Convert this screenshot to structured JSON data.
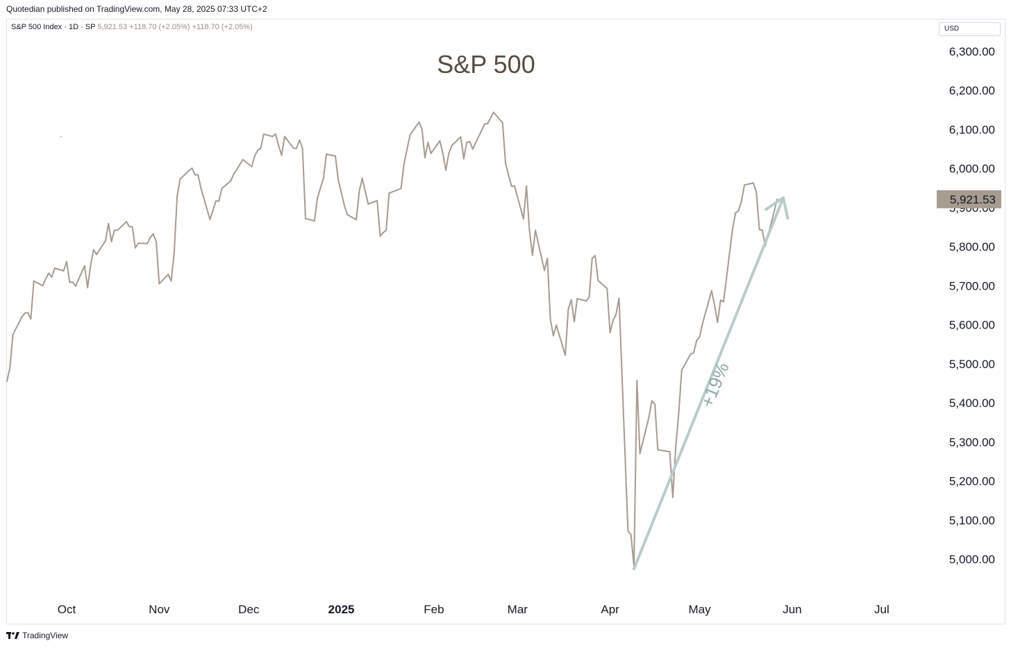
{
  "header": {
    "published": "Quotedian published on TradingView.com, May 28, 2025 07:33 UTC+2"
  },
  "legend": {
    "symbol": "S&P 500 Index · 1D · SP",
    "last": "5,921.53",
    "change1": "+118.70 (+2.05%)",
    "change2": "+118.70 (+2.05%)"
  },
  "currency_button": "USD",
  "footer": {
    "brand": "TradingView",
    "logo_icon": "tradingview-logo-icon"
  },
  "colors": {
    "line": "#a69a8e",
    "arrow": "#b9cbcb",
    "annotation": "#8fa8a8",
    "badge": "#a79c90",
    "title": "#574b40"
  },
  "chart_data": {
    "type": "line",
    "title": "S&P 500",
    "xlabel": "",
    "ylabel": "",
    "x_ticks": [
      "Oct",
      "Nov",
      "Dec",
      "2025",
      "Feb",
      "Mar",
      "Apr",
      "May",
      "Jun",
      "Jul"
    ],
    "y_ticks": [
      "5,000.00",
      "5,100.00",
      "5,200.00",
      "5,300.00",
      "5,400.00",
      "5,500.00",
      "5,600.00",
      "5,700.00",
      "5,800.00",
      "5,900.00",
      "6,000.00",
      "6,100.00",
      "6,200.00",
      "6,300.00"
    ],
    "ylim": [
      4945,
      6370
    ],
    "grid": false,
    "last_value_label": "5,921.53",
    "series": [
      {
        "values": [
          {
            "x": "2024-09-11",
            "y": 5455
          },
          {
            "x": "2024-09-12",
            "y": 5490
          },
          {
            "x": "2024-09-13",
            "y": 5575
          },
          {
            "x": "2024-09-16",
            "y": 5620
          },
          {
            "x": "2024-09-17",
            "y": 5630
          },
          {
            "x": "2024-09-18",
            "y": 5631
          },
          {
            "x": "2024-09-19",
            "y": 5615
          },
          {
            "x": "2024-09-20",
            "y": 5712
          },
          {
            "x": "2024-09-23",
            "y": 5700
          },
          {
            "x": "2024-09-24",
            "y": 5718
          },
          {
            "x": "2024-09-25",
            "y": 5732
          },
          {
            "x": "2024-09-26",
            "y": 5722
          },
          {
            "x": "2024-09-27",
            "y": 5745
          },
          {
            "x": "2024-09-30",
            "y": 5738
          },
          {
            "x": "2024-10-01",
            "y": 5762
          },
          {
            "x": "2024-10-02",
            "y": 5709
          },
          {
            "x": "2024-10-03",
            "y": 5709
          },
          {
            "x": "2024-10-04",
            "y": 5699
          },
          {
            "x": "2024-10-07",
            "y": 5751
          },
          {
            "x": "2024-10-08",
            "y": 5695
          },
          {
            "x": "2024-10-09",
            "y": 5751
          },
          {
            "x": "2024-10-10",
            "y": 5792
          },
          {
            "x": "2024-10-11",
            "y": 5780
          },
          {
            "x": "2024-10-14",
            "y": 5815
          },
          {
            "x": "2024-10-15",
            "y": 5859
          },
          {
            "x": "2024-10-16",
            "y": 5813
          },
          {
            "x": "2024-10-17",
            "y": 5842
          },
          {
            "x": "2024-10-18",
            "y": 5842
          },
          {
            "x": "2024-10-21",
            "y": 5864
          },
          {
            "x": "2024-10-22",
            "y": 5851
          },
          {
            "x": "2024-10-23",
            "y": 5851
          },
          {
            "x": "2024-10-24",
            "y": 5797
          },
          {
            "x": "2024-10-25",
            "y": 5809
          },
          {
            "x": "2024-10-28",
            "y": 5808
          },
          {
            "x": "2024-10-29",
            "y": 5823
          },
          {
            "x": "2024-10-30",
            "y": 5833
          },
          {
            "x": "2024-10-31",
            "y": 5813
          },
          {
            "x": "2024-11-01",
            "y": 5705
          },
          {
            "x": "2024-11-04",
            "y": 5729
          },
          {
            "x": "2024-11-05",
            "y": 5712
          },
          {
            "x": "2024-11-06",
            "y": 5783
          },
          {
            "x": "2024-11-07",
            "y": 5929
          },
          {
            "x": "2024-11-08",
            "y": 5973
          },
          {
            "x": "2024-11-11",
            "y": 5995
          },
          {
            "x": "2024-11-12",
            "y": 6001
          },
          {
            "x": "2024-11-13",
            "y": 5984
          },
          {
            "x": "2024-11-14",
            "y": 5984
          },
          {
            "x": "2024-11-15",
            "y": 5949
          },
          {
            "x": "2024-11-18",
            "y": 5870
          },
          {
            "x": "2024-11-19",
            "y": 5893
          },
          {
            "x": "2024-11-20",
            "y": 5917
          },
          {
            "x": "2024-11-21",
            "y": 5917
          },
          {
            "x": "2024-11-22",
            "y": 5949
          },
          {
            "x": "2024-11-25",
            "y": 5969
          },
          {
            "x": "2024-11-26",
            "y": 5987
          },
          {
            "x": "2024-11-27",
            "y": 5998
          },
          {
            "x": "2024-11-29",
            "y": 6023
          },
          {
            "x": "2024-12-02",
            "y": 6005
          },
          {
            "x": "2024-12-03",
            "y": 6033
          },
          {
            "x": "2024-12-04",
            "y": 6047
          },
          {
            "x": "2024-12-05",
            "y": 6052
          },
          {
            "x": "2024-12-06",
            "y": 6088
          },
          {
            "x": "2024-12-09",
            "y": 6082
          },
          {
            "x": "2024-12-10",
            "y": 6089
          },
          {
            "x": "2024-12-11",
            "y": 6058
          },
          {
            "x": "2024-12-12",
            "y": 6034
          },
          {
            "x": "2024-12-13",
            "y": 6082
          },
          {
            "x": "2024-12-16",
            "y": 6052
          },
          {
            "x": "2024-12-17",
            "y": 6052
          },
          {
            "x": "2024-12-18",
            "y": 6073
          },
          {
            "x": "2024-12-19",
            "y": 6051
          },
          {
            "x": "2024-12-20",
            "y": 5872
          },
          {
            "x": "2024-12-23",
            "y": 5866
          },
          {
            "x": "2024-12-24",
            "y": 5925
          },
          {
            "x": "2024-12-26",
            "y": 5975
          },
          {
            "x": "2024-12-27",
            "y": 6037
          },
          {
            "x": "2024-12-30",
            "y": 6032
          },
          {
            "x": "2024-12-31",
            "y": 5970
          },
          {
            "x": "2025-01-02",
            "y": 5906
          },
          {
            "x": "2025-01-03",
            "y": 5882
          },
          {
            "x": "2025-01-06",
            "y": 5869
          },
          {
            "x": "2025-01-07",
            "y": 5942
          },
          {
            "x": "2025-01-08",
            "y": 5975
          },
          {
            "x": "2025-01-10",
            "y": 5909
          },
          {
            "x": "2025-01-13",
            "y": 5918
          },
          {
            "x": "2025-01-14",
            "y": 5827
          },
          {
            "x": "2025-01-15",
            "y": 5836
          },
          {
            "x": "2025-01-16",
            "y": 5842
          },
          {
            "x": "2025-01-17",
            "y": 5937
          },
          {
            "x": "2025-01-21",
            "y": 5949
          },
          {
            "x": "2025-01-22",
            "y": 6013
          },
          {
            "x": "2025-01-23",
            "y": 6049
          },
          {
            "x": "2025-01-24",
            "y": 6086
          },
          {
            "x": "2025-01-27",
            "y": 6119
          },
          {
            "x": "2025-01-28",
            "y": 6101
          },
          {
            "x": "2025-01-29",
            "y": 6028
          },
          {
            "x": "2025-01-30",
            "y": 6067
          },
          {
            "x": "2025-01-31",
            "y": 6039
          },
          {
            "x": "2025-02-03",
            "y": 6071
          },
          {
            "x": "2025-02-04",
            "y": 6039
          },
          {
            "x": "2025-02-05",
            "y": 5996
          },
          {
            "x": "2025-02-06",
            "y": 6039
          },
          {
            "x": "2025-02-07",
            "y": 6059
          },
          {
            "x": "2025-02-10",
            "y": 6081
          },
          {
            "x": "2025-02-11",
            "y": 6025
          },
          {
            "x": "2025-02-12",
            "y": 6067
          },
          {
            "x": "2025-02-13",
            "y": 6069
          },
          {
            "x": "2025-02-14",
            "y": 6050
          },
          {
            "x": "2025-02-18",
            "y": 6114
          },
          {
            "x": "2025-02-19",
            "y": 6115
          },
          {
            "x": "2025-02-20",
            "y": 6130
          },
          {
            "x": "2025-02-21",
            "y": 6144
          },
          {
            "x": "2025-02-24",
            "y": 6117
          },
          {
            "x": "2025-02-25",
            "y": 6013
          },
          {
            "x": "2025-02-26",
            "y": 5983
          },
          {
            "x": "2025-02-27",
            "y": 5955
          },
          {
            "x": "2025-02-28",
            "y": 5955
          },
          {
            "x": "2025-03-03",
            "y": 5871
          },
          {
            "x": "2025-03-04",
            "y": 5955
          },
          {
            "x": "2025-03-05",
            "y": 5842
          },
          {
            "x": "2025-03-06",
            "y": 5778
          },
          {
            "x": "2025-03-07",
            "y": 5842
          },
          {
            "x": "2025-03-10",
            "y": 5739
          },
          {
            "x": "2025-03-11",
            "y": 5770
          },
          {
            "x": "2025-03-12",
            "y": 5614
          },
          {
            "x": "2025-03-13",
            "y": 5572
          },
          {
            "x": "2025-03-14",
            "y": 5599
          },
          {
            "x": "2025-03-17",
            "y": 5522
          },
          {
            "x": "2025-03-18",
            "y": 5640
          },
          {
            "x": "2025-03-19",
            "y": 5664
          },
          {
            "x": "2025-03-20",
            "y": 5608
          },
          {
            "x": "2025-03-21",
            "y": 5667
          },
          {
            "x": "2025-03-24",
            "y": 5661
          },
          {
            "x": "2025-03-25",
            "y": 5671
          },
          {
            "x": "2025-03-26",
            "y": 5770
          },
          {
            "x": "2025-03-27",
            "y": 5777
          },
          {
            "x": "2025-03-28",
            "y": 5713
          },
          {
            "x": "2025-03-31",
            "y": 5693
          },
          {
            "x": "2025-04-01",
            "y": 5580
          },
          {
            "x": "2025-04-02",
            "y": 5611
          },
          {
            "x": "2025-04-03",
            "y": 5627
          },
          {
            "x": "2025-04-04",
            "y": 5668
          },
          {
            "x": "2025-04-07",
            "y": 5072
          },
          {
            "x": "2025-04-08",
            "y": 5062
          },
          {
            "x": "2025-04-09",
            "y": 4982
          },
          {
            "x": "2025-04-10",
            "y": 5457
          },
          {
            "x": "2025-04-11",
            "y": 5270
          },
          {
            "x": "2025-04-14",
            "y": 5363
          },
          {
            "x": "2025-04-15",
            "y": 5405
          },
          {
            "x": "2025-04-16",
            "y": 5397
          },
          {
            "x": "2025-04-17",
            "y": 5280
          },
          {
            "x": "2025-04-21",
            "y": 5275
          },
          {
            "x": "2025-04-22",
            "y": 5158
          },
          {
            "x": "2025-04-23",
            "y": 5287
          },
          {
            "x": "2025-04-24",
            "y": 5375
          },
          {
            "x": "2025-04-25",
            "y": 5484
          },
          {
            "x": "2025-04-28",
            "y": 5525
          },
          {
            "x": "2025-04-29",
            "y": 5528
          },
          {
            "x": "2025-04-30",
            "y": 5560
          },
          {
            "x": "2025-05-01",
            "y": 5569
          },
          {
            "x": "2025-05-02",
            "y": 5604
          },
          {
            "x": "2025-05-05",
            "y": 5687
          },
          {
            "x": "2025-05-06",
            "y": 5650
          },
          {
            "x": "2025-05-07",
            "y": 5606
          },
          {
            "x": "2025-05-08",
            "y": 5663
          },
          {
            "x": "2025-05-09",
            "y": 5659
          },
          {
            "x": "2025-05-12",
            "y": 5844
          },
          {
            "x": "2025-05-13",
            "y": 5886
          },
          {
            "x": "2025-05-14",
            "y": 5892
          },
          {
            "x": "2025-05-15",
            "y": 5916
          },
          {
            "x": "2025-05-16",
            "y": 5958
          },
          {
            "x": "2025-05-19",
            "y": 5963
          },
          {
            "x": "2025-05-20",
            "y": 5940
          },
          {
            "x": "2025-05-21",
            "y": 5844
          },
          {
            "x": "2025-05-22",
            "y": 5842
          },
          {
            "x": "2025-05-23",
            "y": 5802
          },
          {
            "x": "2025-05-27",
            "y": 5921.53
          }
        ]
      }
    ],
    "annotations": [
      {
        "type": "arrow",
        "from": {
          "x": "2025-04-09",
          "y": 4975
        },
        "to": {
          "x": "2025-05-29",
          "y": 5925
        }
      },
      {
        "type": "text",
        "text": "+19%",
        "x": "2025-05-08",
        "y": 5440
      }
    ]
  }
}
